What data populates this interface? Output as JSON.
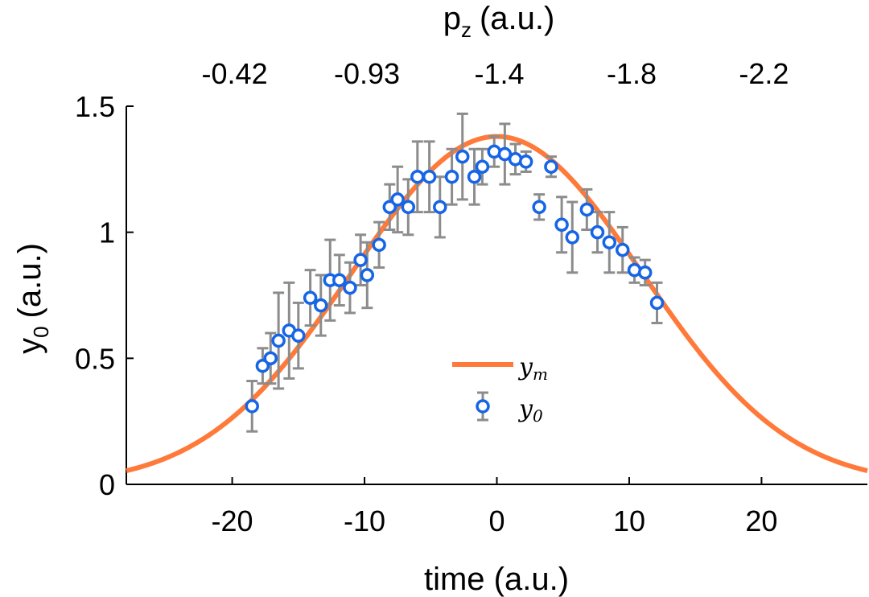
{
  "chart_data": {
    "type": "scatter",
    "xlabel": "time (a.u.)",
    "ylabel_main": "y",
    "ylabel_sub": "0",
    "ylabel_units": "(a.u.)",
    "top_axis": {
      "label_main": "p",
      "label_sub": "z",
      "label_units": "(a.u.)",
      "tick_positions": [
        -20,
        -10,
        0,
        10,
        20
      ],
      "tick_labels": [
        "-0.42",
        "-0.93",
        "-1.4",
        "-1.8",
        "-2.2"
      ]
    },
    "xlim": [
      -28,
      28
    ],
    "ylim": [
      0,
      1.5
    ],
    "x_ticks": [
      -20,
      -10,
      0,
      10,
      20
    ],
    "x_tick_labels": [
      "-20",
      "-10",
      "0",
      "10",
      "20"
    ],
    "y_ticks": [
      0,
      0.5,
      1,
      1.5
    ],
    "y_tick_labels": [
      "0",
      "0.5",
      "1",
      "1.5"
    ],
    "grid": false,
    "legend": {
      "placement": "lower-center",
      "entries": [
        {
          "main": "y",
          "sub": "m",
          "series": "y_m"
        },
        {
          "main": "y",
          "sub": "0",
          "series": "y_0"
        }
      ]
    },
    "series": [
      {
        "name": "y_m",
        "kind": "line",
        "color": "#ff7a3a",
        "model": "gaussian",
        "amplitude": 1.38,
        "center": 0,
        "sigma": 11.0
      },
      {
        "name": "y_0",
        "kind": "points_with_errorbars",
        "color": "#1565e6",
        "errorbar_color": "#8c8c8c",
        "x": [
          -18.5,
          -17.7,
          -17.1,
          -16.5,
          -15.7,
          -15.0,
          -14.1,
          -13.3,
          -12.6,
          -11.9,
          -11.1,
          -10.3,
          -9.8,
          -8.9,
          -8.1,
          -7.5,
          -6.7,
          -6.0,
          -5.1,
          -4.3,
          -3.4,
          -2.6,
          -1.7,
          -1.1,
          -0.2,
          0.6,
          1.4,
          2.2,
          3.2,
          4.1,
          4.9,
          5.7,
          6.8,
          7.6,
          8.5,
          9.5,
          10.4,
          11.2,
          12.1
        ],
        "y": [
          0.31,
          0.47,
          0.5,
          0.57,
          0.61,
          0.59,
          0.74,
          0.71,
          0.81,
          0.81,
          0.78,
          0.89,
          0.83,
          0.95,
          1.1,
          1.13,
          1.1,
          1.22,
          1.22,
          1.1,
          1.22,
          1.3,
          1.22,
          1.26,
          1.32,
          1.31,
          1.29,
          1.28,
          1.1,
          1.26,
          1.03,
          0.98,
          1.09,
          1.0,
          0.96,
          0.93,
          0.85,
          0.84,
          0.72
        ],
        "err": [
          0.1,
          0.07,
          0.1,
          0.19,
          0.19,
          0.13,
          0.11,
          0.12,
          0.16,
          0.1,
          0.1,
          0.1,
          0.13,
          0.09,
          0.09,
          0.13,
          0.11,
          0.14,
          0.14,
          0.12,
          0.11,
          0.17,
          0.11,
          0.07,
          0.06,
          0.12,
          0.06,
          0.04,
          0.05,
          0.04,
          0.11,
          0.14,
          0.08,
          0.08,
          0.12,
          0.09,
          0.05,
          0.05,
          0.08
        ]
      }
    ]
  }
}
